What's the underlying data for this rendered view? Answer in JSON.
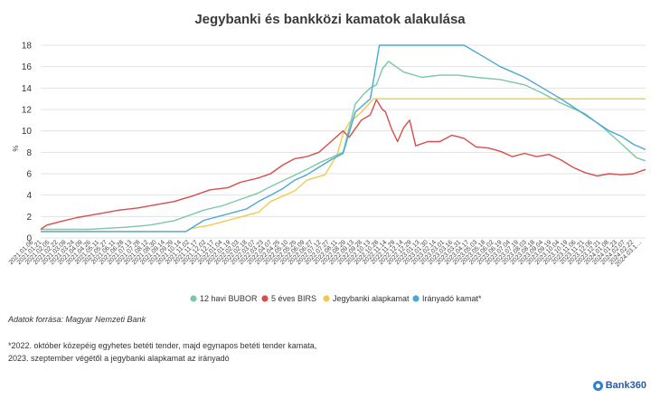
{
  "chart_data": {
    "type": "line",
    "title": "Jegybanki és bankközi kamatok alakulása",
    "ylabel": "%",
    "ylim": [
      0,
      18
    ],
    "yticks": [
      0,
      2,
      4,
      6,
      8,
      10,
      12,
      14,
      16,
      18
    ],
    "grid": true,
    "legend_position": "bottom",
    "xlabels": [
      "2021.01.06",
      "2021.01.21",
      "2021.02.05",
      "2021.02.22",
      "2021.03.09",
      "2021.03.24",
      "2021.04.09",
      "2021.04.26",
      "2021.05.11",
      "2021.05.27",
      "2021.06.11",
      "2021.06.28",
      "2021.07.13",
      "2021.07.28",
      "2021.08.12",
      "2021.08.30",
      "2021.09.14",
      "2021.09.29",
      "2021.10.14",
      "2021.11.02",
      "2021.11.17",
      "2021.12.02",
      "2021.12.17",
      "2022.01.04",
      "2022.01.19",
      "2022.02.03",
      "2022.02.18",
      "2022.03.07",
      "2022.03.23",
      "2022.04.07",
      "2022.04.25",
      "2022.05.10",
      "2022.05.25",
      "2022.06.09",
      "2022.06.27",
      "2022.07.12",
      "2022.07.27",
      "2022.08.11",
      "2022.08.29",
      "2022.09.13",
      "2022.09.28",
      "2022.10.13",
      "2022.10.28",
      "2022.11.14",
      "2022.11.29",
      "2022.12.14",
      "2022.12.29",
      "2023.01.13",
      "2023.01.30",
      "2023.02.14",
      "2023.03.01",
      "2023.03.16",
      "2023.03.31",
      "2023.04.17",
      "2023.05.03",
      "2023.05.18",
      "2023.06.02",
      "2023.06.19",
      "2023.07.04",
      "2023.07.19",
      "2023.08.03",
      "2023.08.18",
      "2023.09.04",
      "2023.09.19",
      "2023.10.04",
      "2023.10.19",
      "2023.11.06",
      "2023.11.21",
      "2023.12.06",
      "2023.12.21",
      "2024.01.08",
      "2024.01.23",
      "2024.02.07",
      "2024.02.22",
      "2024.03.1…"
    ],
    "series": [
      {
        "name": "12 havi BUBOR",
        "color": "#7cc7a6",
        "x": [
          0,
          0.03,
          0.06,
          0.08,
          0.11,
          0.14,
          0.18,
          0.22,
          0.27,
          0.3,
          0.33,
          0.36,
          0.38,
          0.41,
          0.44,
          0.46,
          0.48,
          0.5,
          0.52,
          0.535,
          0.545,
          0.555,
          0.565,
          0.575,
          0.6,
          0.63,
          0.66,
          0.69,
          0.72,
          0.76,
          0.8,
          0.83,
          0.86,
          0.9,
          0.93,
          0.96,
          0.985,
          1.0
        ],
        "values": [
          0.8,
          0.8,
          0.8,
          0.8,
          0.9,
          1.0,
          1.2,
          1.6,
          2.6,
          3.0,
          3.6,
          4.2,
          4.8,
          5.6,
          6.4,
          7.0,
          7.5,
          8.0,
          12.5,
          13.5,
          14.0,
          14.3,
          15.8,
          16.5,
          15.5,
          15.0,
          15.2,
          15.2,
          15.0,
          14.8,
          14.3,
          13.5,
          12.6,
          11.6,
          10.3,
          8.8,
          7.5,
          7.2
        ]
      },
      {
        "name": "5 éves BIRS",
        "color": "#d94c4c",
        "x": [
          0,
          0.01,
          0.03,
          0.06,
          0.08,
          0.1,
          0.13,
          0.16,
          0.19,
          0.22,
          0.25,
          0.28,
          0.31,
          0.33,
          0.36,
          0.38,
          0.4,
          0.42,
          0.44,
          0.46,
          0.48,
          0.5,
          0.51,
          0.53,
          0.545,
          0.555,
          0.565,
          0.57,
          0.58,
          0.59,
          0.6,
          0.61,
          0.62,
          0.64,
          0.66,
          0.68,
          0.7,
          0.72,
          0.74,
          0.76,
          0.78,
          0.8,
          0.82,
          0.84,
          0.86,
          0.88,
          0.9,
          0.92,
          0.94,
          0.96,
          0.98,
          1.0
        ],
        "values": [
          0.8,
          1.2,
          1.5,
          1.9,
          2.1,
          2.3,
          2.6,
          2.8,
          3.1,
          3.4,
          3.9,
          4.5,
          4.7,
          5.2,
          5.6,
          6.0,
          6.8,
          7.4,
          7.6,
          8.0,
          9.0,
          10.0,
          9.4,
          11.0,
          11.5,
          12.9,
          12.0,
          11.8,
          10.2,
          9.0,
          10.3,
          11.0,
          8.6,
          9.0,
          9.0,
          9.6,
          9.3,
          8.5,
          8.4,
          8.1,
          7.6,
          7.9,
          7.6,
          7.8,
          7.3,
          6.6,
          6.1,
          5.8,
          6.0,
          5.9,
          6.0,
          6.4
        ]
      },
      {
        "name": "Jegybanki alapkamat",
        "color": "#f2c94c",
        "x": [
          0,
          0.24,
          0.25,
          0.28,
          0.3,
          0.32,
          0.36,
          0.38,
          0.42,
          0.44,
          0.47,
          0.49,
          0.5,
          0.51,
          0.53,
          0.55,
          0.8,
          0.82,
          1.0
        ],
        "values": [
          0.6,
          0.6,
          0.9,
          1.2,
          1.5,
          1.8,
          2.4,
          3.4,
          4.4,
          5.4,
          5.9,
          7.75,
          9.75,
          10.75,
          11.75,
          13.0,
          13.0,
          13.0,
          13.0
        ]
      },
      {
        "name": "Irányadó kamat*",
        "color": "#4aa8d8",
        "x": [
          0,
          0.24,
          0.27,
          0.3,
          0.32,
          0.34,
          0.36,
          0.38,
          0.4,
          0.42,
          0.44,
          0.46,
          0.48,
          0.5,
          0.52,
          0.545,
          0.56,
          0.6,
          0.7,
          0.73,
          0.76,
          0.8,
          0.83,
          0.86,
          0.88,
          0.9,
          0.92,
          0.94,
          0.96,
          0.98,
          1.0
        ],
        "values": [
          0.6,
          0.6,
          1.65,
          2.1,
          2.4,
          2.7,
          3.4,
          4.0,
          4.6,
          5.4,
          5.9,
          6.6,
          7.3,
          7.9,
          11.75,
          13.0,
          18.0,
          18.0,
          18.0,
          17.0,
          16.0,
          15.0,
          14.0,
          13.0,
          12.25,
          11.5,
          10.75,
          10.0,
          9.5,
          8.75,
          8.25
        ]
      }
    ]
  },
  "legend": [
    {
      "label": "12 havi BUBOR",
      "color": "#7cc7a6"
    },
    {
      "label": "5 éves BIRS",
      "color": "#d94c4c"
    },
    {
      "label": "Jegybanki alapkamat",
      "color": "#f2c94c"
    },
    {
      "label": "Irányadó kamat*",
      "color": "#4aa8d8"
    }
  ],
  "source_text": "Adatok forrása: Magyar Nemzeti Bank",
  "footnote_line1": "*2022. október közepéig egyhetes betéti tender, majd egynapos betéti tender kamata,",
  "footnote_line2": "2023. szeptember végétől a jegybanki alapkamat az irányadó",
  "brand": "Bank360"
}
